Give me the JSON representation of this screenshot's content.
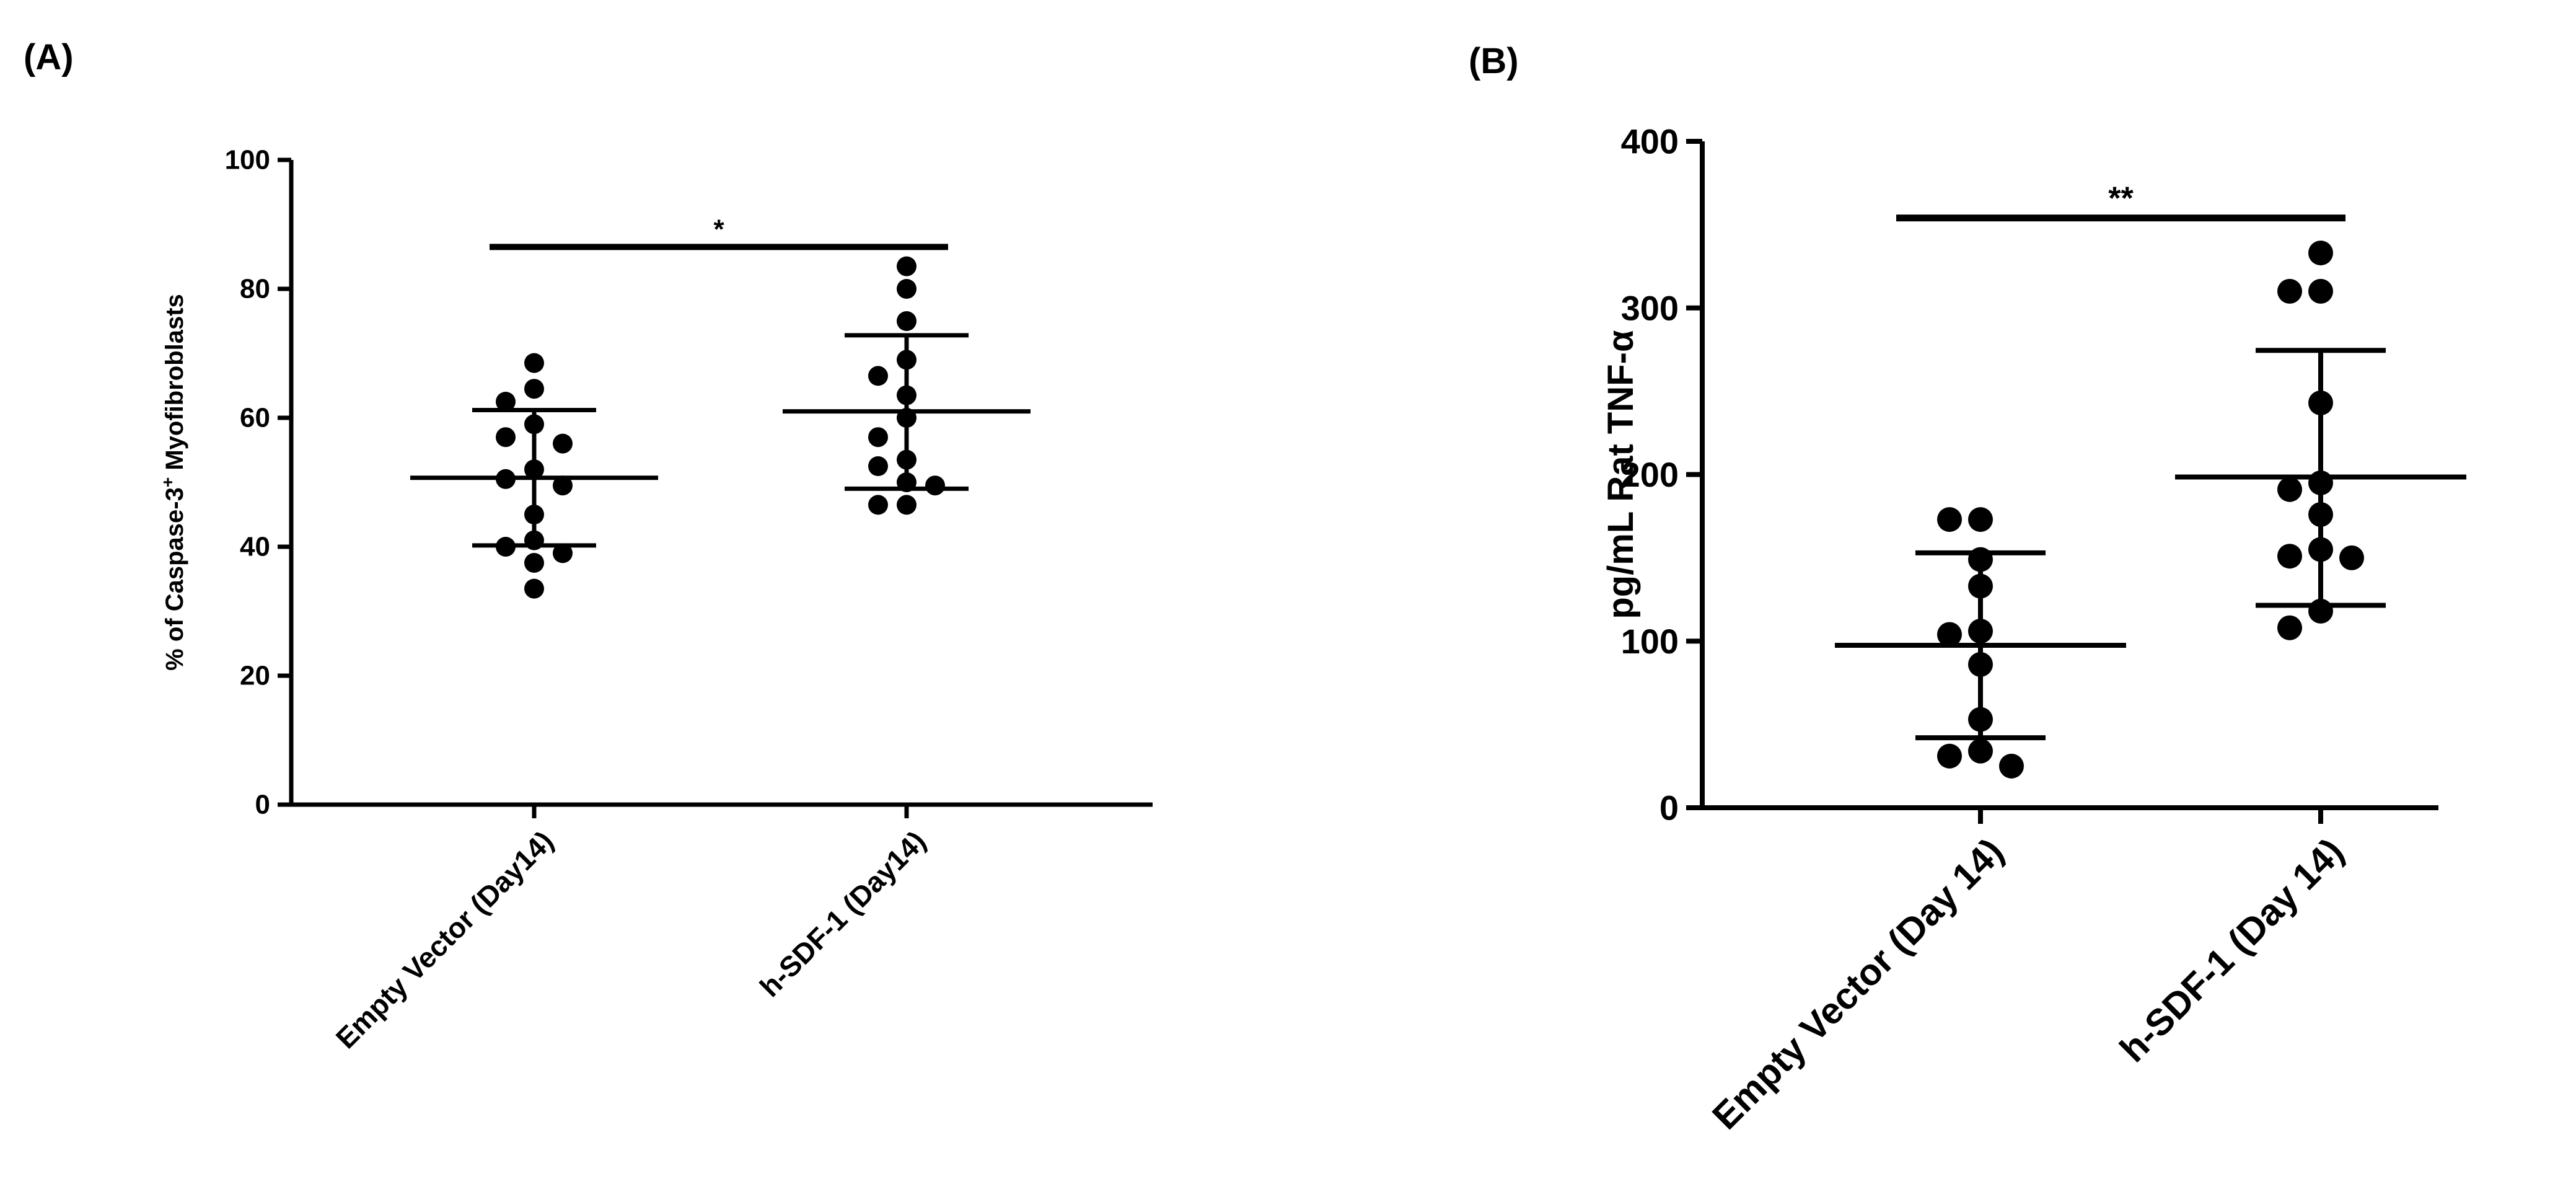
{
  "panel_labels": [
    "(A)",
    "(B)"
  ],
  "chart_data": [
    {
      "type": "scatter",
      "panel": "(A)",
      "ylabel": "% of Caspase-3",
      "ylabel_superscript": "+",
      "ylabel_suffix": " Myofibroblasts",
      "ylim": [
        0,
        100
      ],
      "yticks": [
        0,
        20,
        40,
        60,
        80,
        100
      ],
      "categories": [
        "Empty Vector (Day14)",
        "h-SDF-1 (Day14)"
      ],
      "groups": [
        {
          "category": "Empty Vector (Day14)",
          "points": [
            68.5,
            64.5,
            62.5,
            59,
            57,
            56,
            52,
            50.5,
            49.5,
            45,
            41,
            40,
            39,
            37.5,
            33.5
          ],
          "mean": 50.7,
          "sd_upper": 61.2,
          "sd_lower": 40.2
        },
        {
          "category": "h-SDF-1 (Day14)",
          "points": [
            83.5,
            80,
            75,
            69,
            66.5,
            63.5,
            60,
            57,
            53.5,
            52.5,
            50,
            49.5,
            46.5,
            46.5
          ],
          "mean": 61,
          "sd_upper": 72.8,
          "sd_lower": 49
        }
      ],
      "significance": {
        "label": "*",
        "y": 86.5
      },
      "grid": false
    },
    {
      "type": "scatter",
      "panel": "(B)",
      "ylabel": "pg/mL Rat TNF-α",
      "ylim": [
        0,
        400
      ],
      "yticks": [
        0,
        100,
        200,
        300,
        400
      ],
      "categories": [
        "Empty Vector (Day 14)",
        "h-SDF-1 (Day 14)"
      ],
      "groups": [
        {
          "category": "Empty Vector (Day 14)",
          "points": [
            173,
            173,
            149,
            133,
            106,
            104,
            86,
            53,
            34,
            31,
            25
          ],
          "mean": 97.5,
          "sd_upper": 153,
          "sd_lower": 42
        },
        {
          "category": "h-SDF-1 (Day 14)",
          "points": [
            333,
            310,
            310,
            243,
            195,
            191,
            176,
            155,
            151,
            150,
            118,
            108
          ],
          "mean": 198.5,
          "sd_upper": 274.5,
          "sd_lower": 121.5
        }
      ],
      "significance": {
        "label": "**",
        "y": 354
      },
      "grid": false
    }
  ]
}
